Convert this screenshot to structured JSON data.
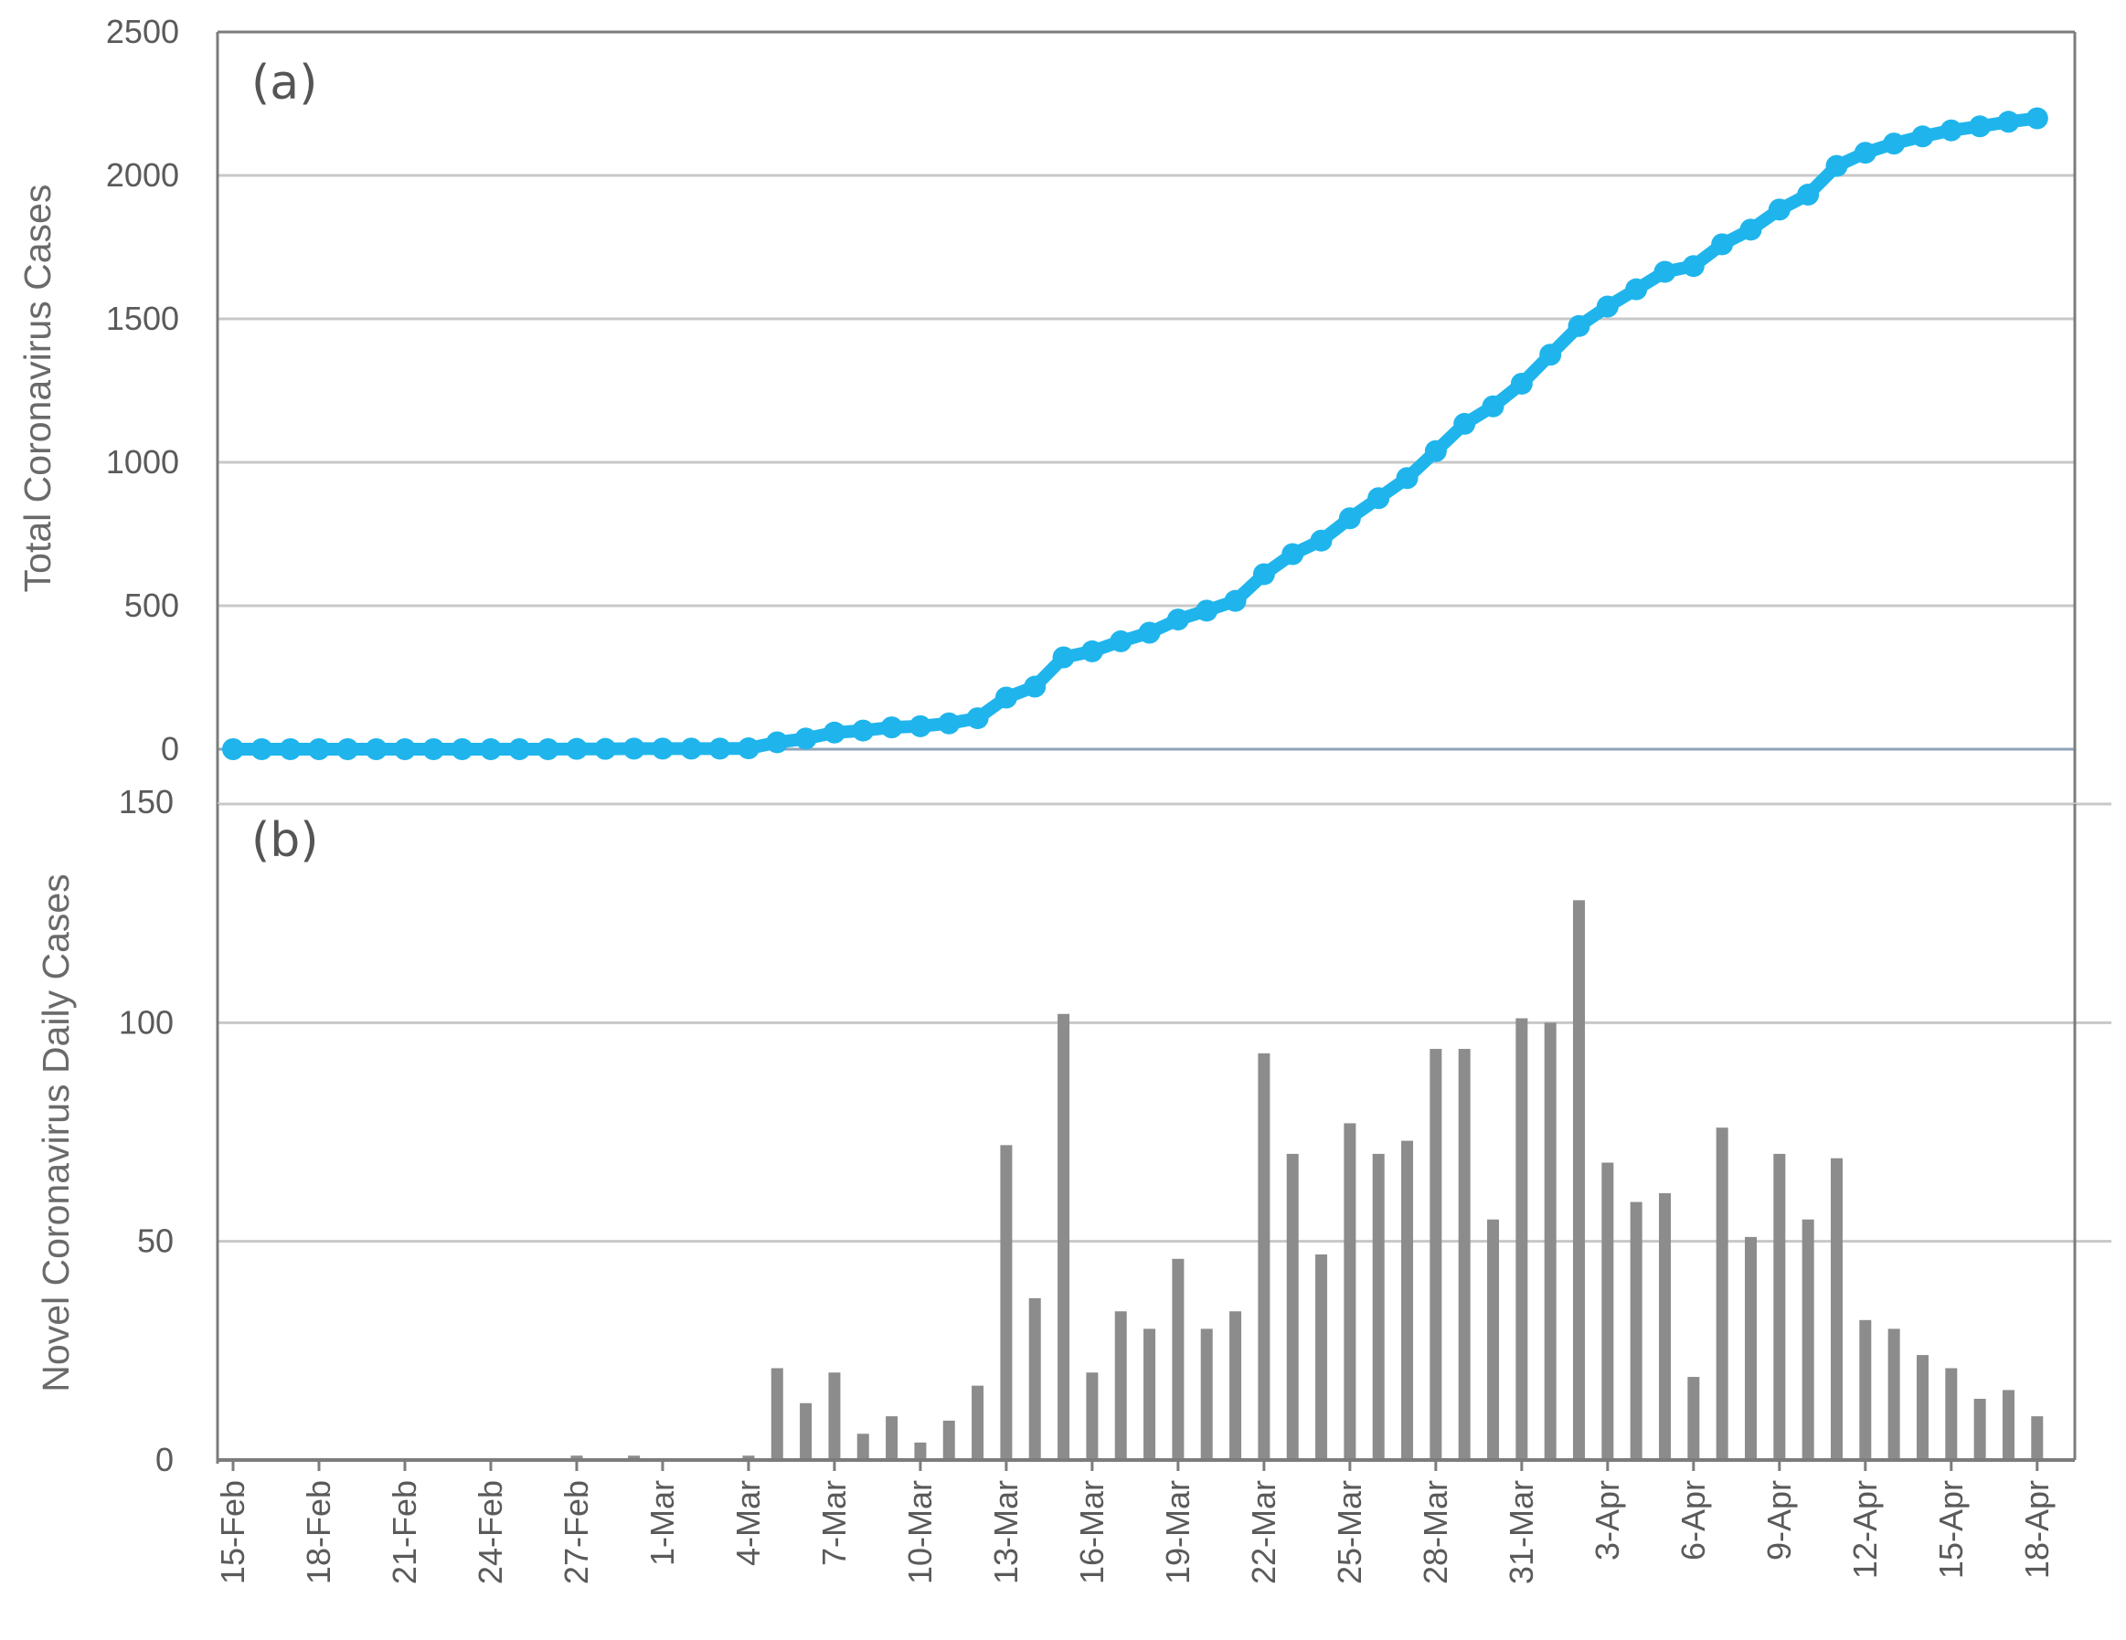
{
  "colors": {
    "line": "#1FB5EC",
    "bar": "#8C8C8C",
    "grid": "#C8C8C8",
    "axis": "#7C7C7C",
    "zero_line": "#8FA3B8"
  },
  "chart_data": [
    {
      "type": "line",
      "panel_label": "(a)",
      "title": "",
      "xlabel": "",
      "ylabel": "Total Coronavirus Cases",
      "ylim": [
        0,
        2500
      ],
      "yticks": [
        0,
        500,
        1000,
        1500,
        2000,
        2500
      ],
      "grid": true,
      "legend": "none",
      "x": [
        "15-Feb",
        "16-Feb",
        "17-Feb",
        "18-Feb",
        "19-Feb",
        "20-Feb",
        "21-Feb",
        "22-Feb",
        "23-Feb",
        "24-Feb",
        "25-Feb",
        "26-Feb",
        "27-Feb",
        "28-Feb",
        "29-Feb",
        "1-Mar",
        "2-Mar",
        "3-Mar",
        "4-Mar",
        "5-Mar",
        "6-Mar",
        "7-Mar",
        "8-Mar",
        "9-Mar",
        "10-Mar",
        "11-Mar",
        "12-Mar",
        "13-Mar",
        "14-Mar",
        "15-Mar",
        "16-Mar",
        "17-Mar",
        "18-Mar",
        "19-Mar",
        "20-Mar",
        "21-Mar",
        "22-Mar",
        "23-Mar",
        "24-Mar",
        "25-Mar",
        "26-Mar",
        "27-Mar",
        "28-Mar",
        "29-Mar",
        "30-Mar",
        "31-Mar",
        "1-Apr",
        "2-Apr",
        "3-Apr",
        "4-Apr",
        "5-Apr",
        "6-Apr",
        "7-Apr",
        "8-Apr",
        "9-Apr",
        "10-Apr",
        "11-Apr",
        "12-Apr",
        "13-Apr",
        "14-Apr",
        "15-Apr",
        "16-Apr",
        "17-Apr",
        "18-Apr"
      ],
      "series": [
        {
          "values": [
            0,
            0,
            0,
            0,
            0,
            0,
            0,
            0,
            0,
            0,
            0,
            0,
            1,
            1,
            2,
            2,
            2,
            2,
            3,
            24,
            37,
            58,
            65,
            76,
            80,
            90,
            108,
            180,
            218,
            320,
            341,
            376,
            406,
            452,
            483,
            517,
            610,
            680,
            727,
            805,
            875,
            945,
            1039,
            1134,
            1195,
            1274,
            1375,
            1475,
            1543,
            1603,
            1664,
            1684,
            1760,
            1811,
            1881,
            1933,
            2033,
            2079,
            2111,
            2136,
            2157,
            2171,
            2187,
            2199
          ]
        }
      ]
    },
    {
      "type": "bar",
      "panel_label": "(b)",
      "title": "",
      "xlabel": "",
      "ylabel": "Novel Coronavirus Daily Cases",
      "ylim": [
        0,
        150
      ],
      "yticks": [
        0,
        50,
        100,
        150
      ],
      "grid": true,
      "legend": "none",
      "x_tick_labels": [
        "15-Feb",
        "18-Feb",
        "21-Feb",
        "24-Feb",
        "27-Feb",
        "1-Mar",
        "4-Mar",
        "7-Mar",
        "10-Mar",
        "13-Mar",
        "16-Mar",
        "19-Mar",
        "22-Mar",
        "25-Mar",
        "28-Mar",
        "31-Mar",
        "3-Apr",
        "6-Apr",
        "9-Apr",
        "12-Apr",
        "15-Apr",
        "18-Apr"
      ],
      "x": [
        "15-Feb",
        "16-Feb",
        "17-Feb",
        "18-Feb",
        "19-Feb",
        "20-Feb",
        "21-Feb",
        "22-Feb",
        "23-Feb",
        "24-Feb",
        "25-Feb",
        "26-Feb",
        "27-Feb",
        "28-Feb",
        "29-Feb",
        "1-Mar",
        "2-Mar",
        "3-Mar",
        "4-Mar",
        "5-Mar",
        "6-Mar",
        "7-Mar",
        "8-Mar",
        "9-Mar",
        "10-Mar",
        "11-Mar",
        "12-Mar",
        "13-Mar",
        "14-Mar",
        "15-Mar",
        "16-Mar",
        "17-Mar",
        "18-Mar",
        "19-Mar",
        "20-Mar",
        "21-Mar",
        "22-Mar",
        "23-Mar",
        "24-Mar",
        "25-Mar",
        "26-Mar",
        "27-Mar",
        "28-Mar",
        "29-Mar",
        "30-Mar",
        "31-Mar",
        "1-Apr",
        "2-Apr",
        "3-Apr",
        "4-Apr",
        "5-Apr",
        "6-Apr",
        "7-Apr",
        "8-Apr",
        "9-Apr",
        "10-Apr",
        "11-Apr",
        "12-Apr",
        "13-Apr",
        "14-Apr",
        "15-Apr",
        "16-Apr",
        "17-Apr",
        "18-Apr"
      ],
      "series": [
        {
          "values": [
            0,
            0,
            0,
            0,
            0,
            0,
            0,
            0,
            0,
            0,
            0,
            0,
            1,
            0,
            1,
            0,
            0,
            0,
            1,
            21,
            13,
            20,
            6,
            10,
            4,
            9,
            17,
            72,
            37,
            102,
            20,
            34,
            30,
            46,
            30,
            34,
            93,
            70,
            47,
            77,
            70,
            73,
            94,
            94,
            55,
            101,
            100,
            128,
            68,
            59,
            61,
            19,
            76,
            51,
            70,
            55,
            69,
            32,
            30,
            24,
            21,
            14,
            16,
            10
          ]
        }
      ]
    }
  ]
}
